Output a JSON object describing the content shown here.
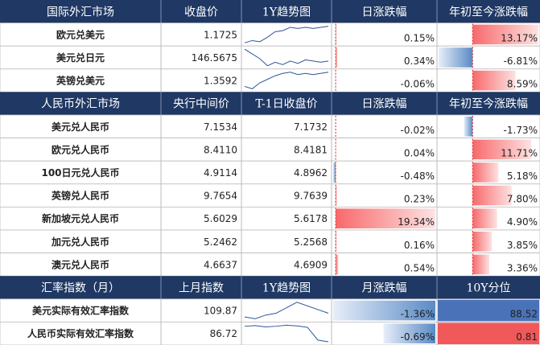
{
  "sections": [
    {
      "header": [
        "国际外汇市场",
        "收盘价",
        "1Y趋势图",
        "日涨跌幅",
        "年初至今涨跌幅"
      ],
      "rows": [
        {
          "name": "欧元兑美元",
          "close": "1.1725",
          "trend": [
            1.03,
            1.05,
            1.04,
            1.08,
            1.13,
            1.14,
            1.17,
            1.16,
            1.17,
            1.16,
            1.17,
            1.18
          ],
          "day": {
            "value": 0.15,
            "label": "0.15%"
          },
          "ytd": {
            "value": 13.17,
            "label": "13.17%"
          }
        },
        {
          "name": "美元兑日元",
          "close": "146.5675",
          "trend": [
            157,
            153,
            149,
            143,
            146,
            144,
            147,
            145,
            148,
            147,
            146,
            147
          ],
          "day": {
            "value": 0.34,
            "label": "0.34%"
          },
          "ytd": {
            "value": -6.81,
            "label": "-6.81%"
          }
        },
        {
          "name": "英镑兑美元",
          "close": "1.3592",
          "trend": [
            1.24,
            1.22,
            1.27,
            1.3,
            1.33,
            1.35,
            1.36,
            1.34,
            1.35,
            1.34,
            1.35,
            1.36
          ],
          "day": {
            "value": -0.06,
            "label": "-0.06%"
          },
          "ytd": {
            "value": 8.59,
            "label": "8.59%"
          }
        }
      ]
    },
    {
      "header": [
        "人民币外汇市场",
        "央行中间价",
        "T-1日收盘价",
        "日涨跌幅",
        "年初至今涨跌幅"
      ],
      "rows": [
        {
          "name": "美元兑人民币",
          "mid": "7.1534",
          "prev": "7.1732",
          "day": {
            "value": -0.02,
            "label": "-0.02%"
          },
          "ytd": {
            "value": -1.73,
            "label": "-1.73%"
          }
        },
        {
          "name": "欧元兑人民币",
          "mid": "8.4110",
          "prev": "8.4181",
          "day": {
            "value": 0.04,
            "label": "0.04%"
          },
          "ytd": {
            "value": 11.71,
            "label": "11.71%"
          }
        },
        {
          "name": "100日元兑人民币",
          "mid": "4.9114",
          "prev": "4.8962",
          "day": {
            "value": -0.48,
            "label": "-0.48%"
          },
          "ytd": {
            "value": 5.18,
            "label": "5.18%"
          }
        },
        {
          "name": "英镑兑人民币",
          "mid": "9.7654",
          "prev": "9.7639",
          "day": {
            "value": 0.23,
            "label": "0.23%"
          },
          "ytd": {
            "value": 7.8,
            "label": "7.80%"
          }
        },
        {
          "name": "新加坡元兑人民币",
          "mid": "5.6029",
          "prev": "5.6178",
          "day": {
            "value": 19.34,
            "label": "19.34%"
          },
          "ytd": {
            "value": 4.9,
            "label": "4.90%"
          }
        },
        {
          "name": "加元兑人民币",
          "mid": "5.2462",
          "prev": "5.2568",
          "day": {
            "value": 0.16,
            "label": "0.16%"
          },
          "ytd": {
            "value": 3.85,
            "label": "3.85%"
          }
        },
        {
          "name": "澳元兑人民币",
          "mid": "4.6637",
          "prev": "4.6909",
          "day": {
            "value": 0.54,
            "label": "0.54%"
          },
          "ytd": {
            "value": 3.36,
            "label": "3.36%"
          }
        }
      ]
    },
    {
      "header": [
        "汇率指数（月）",
        "上月指数",
        "1Y趋势图",
        "月涨跌幅",
        "10Y分位"
      ],
      "rows": [
        {
          "name": "美元实际有效汇率指数",
          "last": "109.87",
          "trend": [
            106,
            105,
            107,
            108,
            111,
            114,
            112,
            110,
            108
          ],
          "month": {
            "value": -1.36,
            "label": "-1.36%"
          },
          "pct": {
            "value": 88.52,
            "color": "#4a72b8"
          }
        },
        {
          "name": "人民币实际有效汇率指数",
          "last": "86.72",
          "trend": [
            90,
            90.2,
            89.8,
            90,
            90.3,
            90.1,
            89.7,
            86,
            85.5
          ],
          "month": {
            "value": -0.69,
            "label": "-0.69%"
          },
          "pct": {
            "value": 0.81,
            "color": "#f0585a"
          }
        }
      ]
    }
  ]
}
